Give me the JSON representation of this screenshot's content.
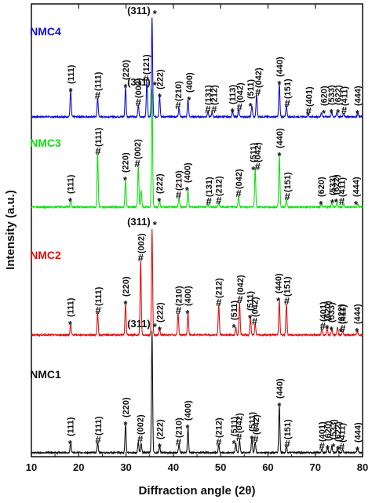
{
  "chart_data": {
    "type": "line",
    "xlabel": "Diffraction angle (2θ)",
    "ylabel": "Intensity (a.u.)",
    "xlim": [
      10,
      80
    ],
    "x_ticks": [
      10,
      20,
      30,
      40,
      50,
      60,
      70,
      80
    ],
    "x_tick_labels": [
      "10",
      "20",
      "30",
      "40",
      "50",
      "60",
      "70",
      "80"
    ],
    "grid": false,
    "legend": "labels placed above each pattern",
    "colors": {
      "NMC4": "#1010cc",
      "NMC3": "#10e010",
      "NMC2": "#e01010",
      "NMC1": "#111111"
    },
    "series": [
      {
        "name": "NMC4",
        "peaks": [
          {
            "x": 18.3,
            "h": 33
          },
          {
            "x": 24.0,
            "h": 24
          },
          {
            "x": 29.9,
            "h": 38
          },
          {
            "x": 32.6,
            "h": 15
          },
          {
            "x": 34.4,
            "h": 45
          },
          {
            "x": 35.5,
            "h": 126
          },
          {
            "x": 37.1,
            "h": 26
          },
          {
            "x": 41.2,
            "h": 11
          },
          {
            "x": 43.1,
            "h": 22
          },
          {
            "x": 47.3,
            "h": 6
          },
          {
            "x": 48.2,
            "h": 6
          },
          {
            "x": 52.5,
            "h": 7
          },
          {
            "x": 53.8,
            "h": 9
          },
          {
            "x": 56.6,
            "h": 14
          },
          {
            "x": 57.6,
            "h": 28
          },
          {
            "x": 62.4,
            "h": 42
          },
          {
            "x": 63.9,
            "h": 14
          },
          {
            "x": 68.5,
            "h": 4
          },
          {
            "x": 71.3,
            "h": 5
          },
          {
            "x": 73.5,
            "h": 6
          },
          {
            "x": 74.6,
            "h": 6
          },
          {
            "x": 76.0,
            "h": 5
          },
          {
            "x": 79.0,
            "h": 5
          }
        ],
        "annotations": [
          {
            "x": 18.3,
            "label": "(111)",
            "mark": "*"
          },
          {
            "x": 24.0,
            "label": "(111)",
            "mark": "#"
          },
          {
            "x": 29.9,
            "label": "(220)",
            "mark": "*"
          },
          {
            "x": 32.6,
            "label": "(002)",
            "mark": "#"
          },
          {
            "x": 34.2,
            "label": "(121)",
            "mark": "#"
          },
          {
            "x": 37.1,
            "label": "(222)",
            "mark": "*"
          },
          {
            "x": 41.0,
            "label": "(210)",
            "mark": "#"
          },
          {
            "x": 43.3,
            "label": "(400)",
            "mark": "*"
          },
          {
            "x": 47.3,
            "label": "(131)",
            "mark": "#"
          },
          {
            "x": 48.6,
            "label": "(212)",
            "mark": "#"
          },
          {
            "x": 52.5,
            "label": "(113)",
            "mark": "*"
          },
          {
            "x": 54.0,
            "label": "(042)",
            "mark": "#"
          },
          {
            "x": 56.3,
            "label": "(511)",
            "mark": "*"
          },
          {
            "x": 57.9,
            "label": "(042)",
            "mark": "#"
          },
          {
            "x": 62.4,
            "label": "(440)",
            "mark": "*"
          },
          {
            "x": 64.1,
            "label": "(151)",
            "mark": "#"
          },
          {
            "x": 68.6,
            "label": "(401)",
            "mark": "#"
          },
          {
            "x": 71.8,
            "label": "(620)",
            "mark": "*"
          },
          {
            "x": 73.4,
            "label": "(533)",
            "mark": "*"
          },
          {
            "x": 74.8,
            "label": "(622)",
            "mark": "*"
          },
          {
            "x": 76.1,
            "label": "(411)",
            "mark": "#"
          },
          {
            "x": 78.9,
            "label": "(444)",
            "mark": "*"
          }
        ],
        "top_label": {
          "x": 35.5,
          "label": "(311)",
          "mark": "*"
        }
      },
      {
        "name": "NMC3",
        "peaks": [
          {
            "x": 18.3,
            "h": 8
          },
          {
            "x": 24.0,
            "h": 68
          },
          {
            "x": 29.9,
            "h": 35
          },
          {
            "x": 32.6,
            "h": 52
          },
          {
            "x": 33.2,
            "h": 22
          },
          {
            "x": 35.5,
            "h": 150
          },
          {
            "x": 37.1,
            "h": 8
          },
          {
            "x": 41.2,
            "h": 12
          },
          {
            "x": 43.1,
            "h": 22
          },
          {
            "x": 47.3,
            "h": 4
          },
          {
            "x": 49.6,
            "h": 5
          },
          {
            "x": 53.8,
            "h": 14
          },
          {
            "x": 57.3,
            "h": 48
          },
          {
            "x": 62.4,
            "h": 66
          },
          {
            "x": 63.9,
            "h": 10
          },
          {
            "x": 71.3,
            "h": 4
          },
          {
            "x": 73.5,
            "h": 6
          },
          {
            "x": 74.6,
            "h": 7
          },
          {
            "x": 76.0,
            "h": 4
          },
          {
            "x": 79.0,
            "h": 4
          }
        ],
        "annotations": [
          {
            "x": 18.2,
            "label": "(111)",
            "mark": "*"
          },
          {
            "x": 24.1,
            "label": "(111)",
            "mark": "#"
          },
          {
            "x": 29.8,
            "label": "(220)",
            "mark": "*"
          },
          {
            "x": 32.4,
            "label": "(002)",
            "mark": "#"
          },
          {
            "x": 37.0,
            "label": "(222)",
            "mark": "*"
          },
          {
            "x": 41.1,
            "label": "(210)",
            "mark": "#"
          },
          {
            "x": 42.9,
            "label": "(400)",
            "mark": "*"
          },
          {
            "x": 47.5,
            "label": "(131)",
            "mark": "#"
          },
          {
            "x": 49.6,
            "label": "(212)",
            "mark": "#"
          },
          {
            "x": 53.8,
            "label": "(042)",
            "mark": "#"
          },
          {
            "x": 56.9,
            "label": "(511)",
            "mark": "*"
          },
          {
            "x": 57.8,
            "label": "(042)",
            "mark": "#"
          },
          {
            "x": 62.4,
            "label": "(440)",
            "mark": "*"
          },
          {
            "x": 64.1,
            "label": "(151)",
            "mark": "#"
          },
          {
            "x": 71.2,
            "label": "(620)",
            "mark": "*"
          },
          {
            "x": 73.6,
            "label": "(533)",
            "mark": "*"
          },
          {
            "x": 74.4,
            "label": "(622)",
            "mark": "*"
          },
          {
            "x": 75.6,
            "label": "(411)",
            "mark": "#"
          },
          {
            "x": 78.6,
            "label": "(444)",
            "mark": "*"
          }
        ],
        "top_label": {
          "x": 35.5,
          "label": "(311)",
          "mark": "*"
        }
      },
      {
        "name": "NMC2",
        "peaks": [
          {
            "x": 18.3,
            "h": 14
          },
          {
            "x": 24.0,
            "h": 28
          },
          {
            "x": 29.9,
            "h": 40
          },
          {
            "x": 33.1,
            "h": 95
          },
          {
            "x": 35.5,
            "h": 135
          },
          {
            "x": 37.1,
            "h": 7
          },
          {
            "x": 41.0,
            "h": 28
          },
          {
            "x": 43.1,
            "h": 28
          },
          {
            "x": 49.6,
            "h": 38
          },
          {
            "x": 53.2,
            "h": 10
          },
          {
            "x": 54.0,
            "h": 42
          },
          {
            "x": 56.3,
            "h": 22
          },
          {
            "x": 57.3,
            "h": 14
          },
          {
            "x": 62.4,
            "h": 44
          },
          {
            "x": 63.9,
            "h": 40
          },
          {
            "x": 71.4,
            "h": 8
          },
          {
            "x": 72.5,
            "h": 9
          },
          {
            "x": 73.5,
            "h": 7
          },
          {
            "x": 74.7,
            "h": 10
          },
          {
            "x": 75.8,
            "h": 5
          },
          {
            "x": 78.9,
            "h": 5
          }
        ],
        "annotations": [
          {
            "x": 18.2,
            "label": "(111)",
            "mark": "*"
          },
          {
            "x": 24.1,
            "label": "(111)",
            "mark": "#"
          },
          {
            "x": 29.9,
            "label": "(220)",
            "mark": "*"
          },
          {
            "x": 33.1,
            "label": "(002)",
            "mark": "#"
          },
          {
            "x": 37.1,
            "label": "(222)",
            "mark": "*"
          },
          {
            "x": 41.1,
            "label": "(210)",
            "mark": "#"
          },
          {
            "x": 43.0,
            "label": "(400)",
            "mark": "*"
          },
          {
            "x": 49.6,
            "label": "(212)",
            "mark": "#"
          },
          {
            "x": 52.8,
            "label": "(511)",
            "mark": "*"
          },
          {
            "x": 54.1,
            "label": "(042)",
            "mark": "#"
          },
          {
            "x": 56.2,
            "label": "(511)",
            "mark": "*"
          },
          {
            "x": 57.2,
            "label": "(042)",
            "mark": "#"
          },
          {
            "x": 62.2,
            "label": "(440)",
            "mark": "*"
          },
          {
            "x": 64.0,
            "label": "(151)",
            "mark": "#"
          },
          {
            "x": 71.6,
            "label": "(401)",
            "mark": "#"
          },
          {
            "x": 72.5,
            "label": "(620)",
            "mark": "*"
          },
          {
            "x": 73.4,
            "label": "(533)",
            "mark": "*"
          },
          {
            "x": 75.4,
            "label": "(622)",
            "mark": "*"
          },
          {
            "x": 75.8,
            "label": "(411)",
            "mark": "#"
          },
          {
            "x": 78.8,
            "label": "(444)",
            "mark": "*"
          }
        ],
        "top_label": {
          "x": 35.5,
          "label": "(311)",
          "mark": "*"
        }
      },
      {
        "name": "NMC1",
        "peaks": [
          {
            "x": 18.3,
            "h": 12
          },
          {
            "x": 24.0,
            "h": 13
          },
          {
            "x": 29.9,
            "h": 36
          },
          {
            "x": 32.6,
            "h": 14
          },
          {
            "x": 33.2,
            "h": 12
          },
          {
            "x": 35.5,
            "h": 155
          },
          {
            "x": 37.1,
            "h": 8
          },
          {
            "x": 41.2,
            "h": 10
          },
          {
            "x": 43.1,
            "h": 32
          },
          {
            "x": 49.6,
            "h": 10
          },
          {
            "x": 53.2,
            "h": 12
          },
          {
            "x": 54.0,
            "h": 16
          },
          {
            "x": 56.6,
            "h": 18
          },
          {
            "x": 57.3,
            "h": 14
          },
          {
            "x": 62.4,
            "h": 60
          },
          {
            "x": 63.9,
            "h": 8
          },
          {
            "x": 71.4,
            "h": 5
          },
          {
            "x": 72.6,
            "h": 6
          },
          {
            "x": 73.5,
            "h": 8
          },
          {
            "x": 74.7,
            "h": 5
          },
          {
            "x": 75.8,
            "h": 4
          },
          {
            "x": 78.9,
            "h": 4
          }
        ],
        "annotations": [
          {
            "x": 18.2,
            "label": "(111)",
            "mark": "*"
          },
          {
            "x": 24.1,
            "label": "(111)",
            "mark": "#"
          },
          {
            "x": 29.9,
            "label": "(220)",
            "mark": "*"
          },
          {
            "x": 33.0,
            "label": "(002)",
            "mark": "#"
          },
          {
            "x": 37.1,
            "label": "(222)",
            "mark": "*"
          },
          {
            "x": 41.1,
            "label": "(210)",
            "mark": "#"
          },
          {
            "x": 43.0,
            "label": "(400)",
            "mark": "*"
          },
          {
            "x": 49.6,
            "label": "(212)",
            "mark": "#"
          },
          {
            "x": 52.8,
            "label": "(511)",
            "mark": "*"
          },
          {
            "x": 53.9,
            "label": "(042)",
            "mark": "#"
          },
          {
            "x": 56.6,
            "label": "(511)",
            "mark": "*"
          },
          {
            "x": 57.4,
            "label": "(042)",
            "mark": "#"
          },
          {
            "x": 62.4,
            "label": "(440)",
            "mark": "*"
          },
          {
            "x": 64.1,
            "label": "(151)",
            "mark": "#"
          },
          {
            "x": 71.4,
            "label": "(401)",
            "mark": "#"
          },
          {
            "x": 72.6,
            "label": "(620)",
            "mark": "*"
          },
          {
            "x": 73.8,
            "label": "(533)",
            "mark": "*"
          },
          {
            "x": 74.8,
            "label": "(622)",
            "mark": "*"
          },
          {
            "x": 75.6,
            "label": "(411)",
            "mark": "#"
          },
          {
            "x": 78.9,
            "label": "(444)",
            "mark": "*"
          }
        ],
        "top_label": {
          "x": 35.5,
          "label": "(311)",
          "mark": "*"
        }
      }
    ]
  }
}
